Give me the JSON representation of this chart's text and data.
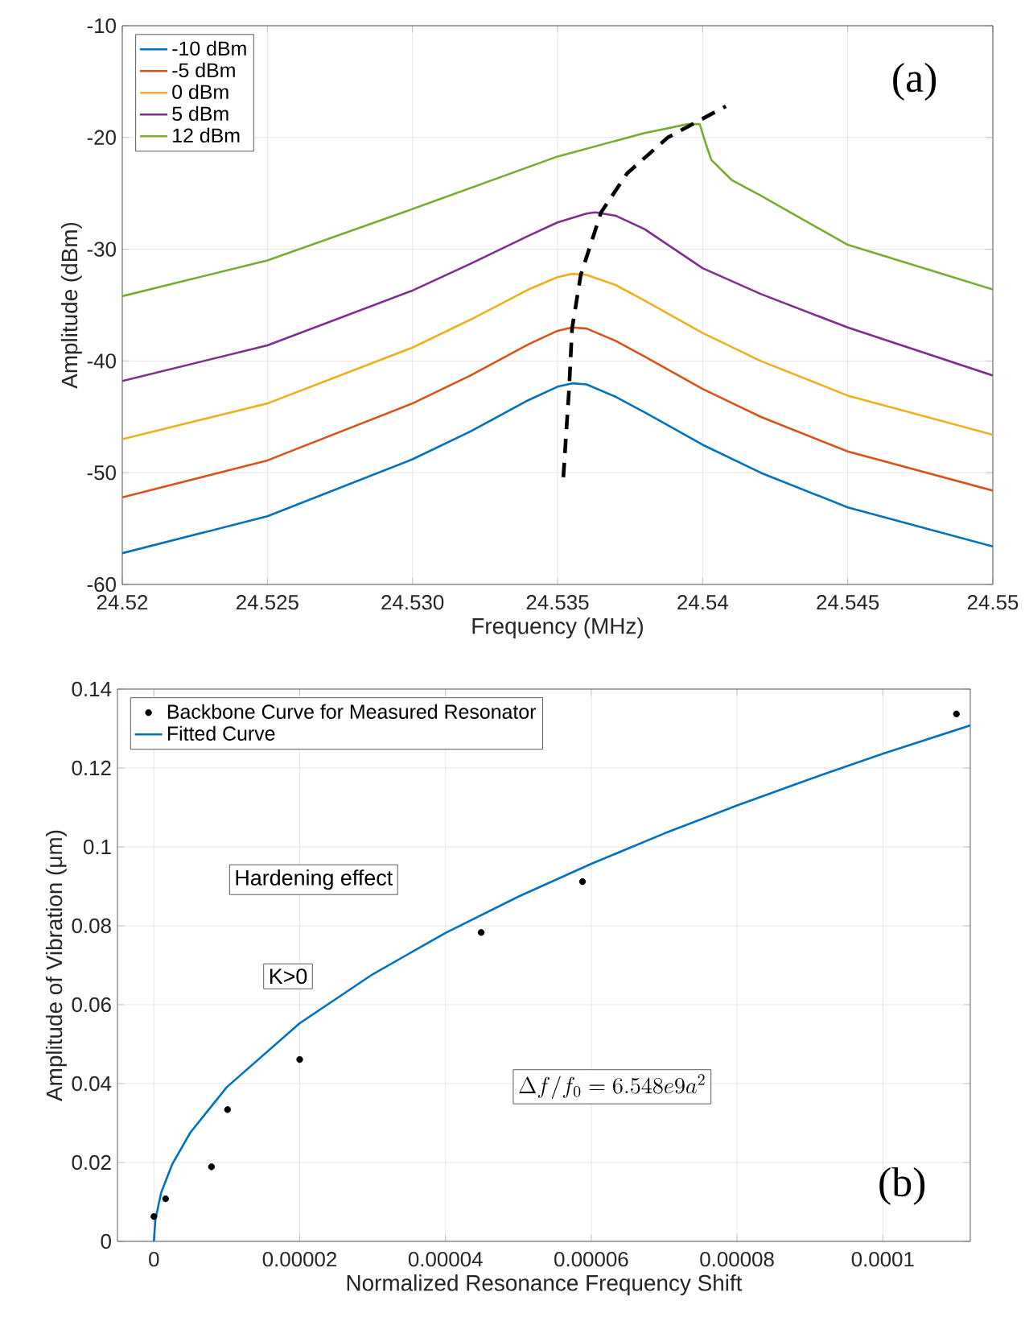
{
  "chart_data": [
    {
      "type": "line",
      "xlabel": "Frequency (MHz)",
      "ylabel": "Amplitude (dBm)",
      "xlim": [
        24.52,
        24.55
      ],
      "ylim": [
        -60,
        -10
      ],
      "xticks": [
        24.52,
        {
          "value": 24.525,
          "label": "24.525"
        },
        {
          "value": 24.53,
          "label": "24.530"
        },
        {
          "value": 24.535,
          "label": "24.535"
        },
        24.54,
        24.545,
        24.55
      ],
      "yticks": [
        -60,
        -50,
        -40,
        -30,
        -20,
        -10
      ],
      "grid": true,
      "legend": "top left",
      "annotations": [
        "(a)"
      ],
      "series": [
        {
          "name": "-10 dBm",
          "color": "#0072bd",
          "x": [
            24.52,
            24.525,
            24.53,
            24.532,
            24.534,
            24.535,
            24.5355,
            24.536,
            24.537,
            24.538,
            24.54,
            24.542,
            24.545,
            24.55
          ],
          "values": [
            -57.2,
            -53.9,
            -48.8,
            -46.3,
            -43.5,
            -42.3,
            -42.0,
            -42.1,
            -43.2,
            -44.6,
            -47.5,
            -50.0,
            -53.1,
            -56.6
          ]
        },
        {
          "name": "-5 dBm",
          "color": "#d95319",
          "x": [
            24.52,
            24.525,
            24.53,
            24.532,
            24.534,
            24.535,
            24.5355,
            24.536,
            24.537,
            24.538,
            24.54,
            24.542,
            24.545,
            24.55
          ],
          "values": [
            -52.2,
            -48.9,
            -43.8,
            -41.3,
            -38.5,
            -37.3,
            -37.0,
            -37.1,
            -38.2,
            -39.6,
            -42.5,
            -45.0,
            -48.1,
            -51.6
          ]
        },
        {
          "name": "0 dBm",
          "color": "#edb120",
          "x": [
            24.52,
            24.525,
            24.53,
            24.532,
            24.534,
            24.535,
            24.5355,
            24.536,
            24.537,
            24.538,
            24.54,
            24.542,
            24.545,
            24.55
          ],
          "values": [
            -47.0,
            -43.8,
            -38.8,
            -36.3,
            -33.6,
            -32.5,
            -32.2,
            -32.3,
            -33.2,
            -34.6,
            -37.5,
            -40.0,
            -43.1,
            -46.6
          ]
        },
        {
          "name": "5 dBm",
          "color": "#7e2f8e",
          "x": [
            24.52,
            24.525,
            24.53,
            24.532,
            24.534,
            24.535,
            24.536,
            24.5363,
            24.537,
            24.538,
            24.54,
            24.542,
            24.545,
            24.55
          ],
          "values": [
            -41.8,
            -38.6,
            -33.7,
            -31.3,
            -28.8,
            -27.6,
            -26.8,
            -26.7,
            -27.0,
            -28.2,
            -31.7,
            -34.0,
            -37.0,
            -41.3
          ]
        },
        {
          "name": "12 dBm",
          "color": "#77ac30",
          "x": [
            24.52,
            24.525,
            24.53,
            24.535,
            24.538,
            24.5395,
            24.5399,
            24.5401,
            24.5403,
            24.541,
            24.542,
            24.545,
            24.55
          ],
          "values": [
            -34.2,
            -31.0,
            -26.4,
            -21.7,
            -19.6,
            -18.8,
            -18.8,
            -20.5,
            -22.0,
            -23.8,
            -25.2,
            -29.6,
            -33.6
          ]
        },
        {
          "color": "#000000",
          "line_style": "dashed",
          "x": [
            24.5352,
            24.5354,
            24.5355,
            24.5358,
            24.5365,
            24.5374,
            24.5388,
            24.5408
          ],
          "values": [
            -50.4,
            -42.4,
            -37.1,
            -32.3,
            -26.7,
            -23.2,
            -20.0,
            -17.2
          ]
        }
      ]
    },
    {
      "type": "line",
      "xlabel": "Normalized Resonance Frequency Shift",
      "ylabel": "Amplitude of Vibration (μm)",
      "xlim": [
        -5e-06,
        0.000112
      ],
      "ylim": [
        0,
        0.14
      ],
      "xticks": [
        0,
        {
          "value": 2e-05,
          "label": "0.00002"
        },
        {
          "value": 4e-05,
          "label": "0.00004"
        },
        {
          "value": 6e-05,
          "label": "0.00006"
        },
        {
          "value": 8e-05,
          "label": "0.00008"
        },
        {
          "value": 0.0001,
          "label": "0.0001"
        }
      ],
      "yticks": [
        0,
        0.02,
        0.04,
        0.06,
        0.08,
        0.1,
        0.12,
        0.14
      ],
      "grid": true,
      "legend": "top left",
      "annotations": [
        "(b)",
        "Hardening effect",
        "K>0",
        "\\Delta f/f_0 = 6.548e9a^2"
      ],
      "series": [
        {
          "name": "Backbone Curve for Measured Resonator",
          "type": "scatter",
          "marker": "circle",
          "color": "#000000",
          "x": [
            0,
            1.6e-06,
            7.9e-06,
            1.01e-05,
            2e-05,
            4.49e-05,
            5.88e-05,
            0.0001101
          ],
          "values": [
            0.0063,
            0.0108,
            0.0189,
            0.0334,
            0.0461,
            0.0783,
            0.0912,
            0.1337
          ]
        },
        {
          "name": "Fitted Curve",
          "color": "#0072bd",
          "x": [
            0,
            2e-07,
            1e-06,
            2.5e-06,
            5e-06,
            1e-05,
            2e-05,
            3e-05,
            4e-05,
            5e-05,
            6e-05,
            7e-05,
            8e-05,
            9e-05,
            0.0001,
            0.000112
          ],
          "values": [
            0,
            0.0055,
            0.0124,
            0.0195,
            0.0276,
            0.0391,
            0.0553,
            0.0677,
            0.0782,
            0.0874,
            0.0957,
            0.1034,
            0.1105,
            0.1172,
            0.1236,
            0.1308
          ]
        }
      ]
    }
  ]
}
